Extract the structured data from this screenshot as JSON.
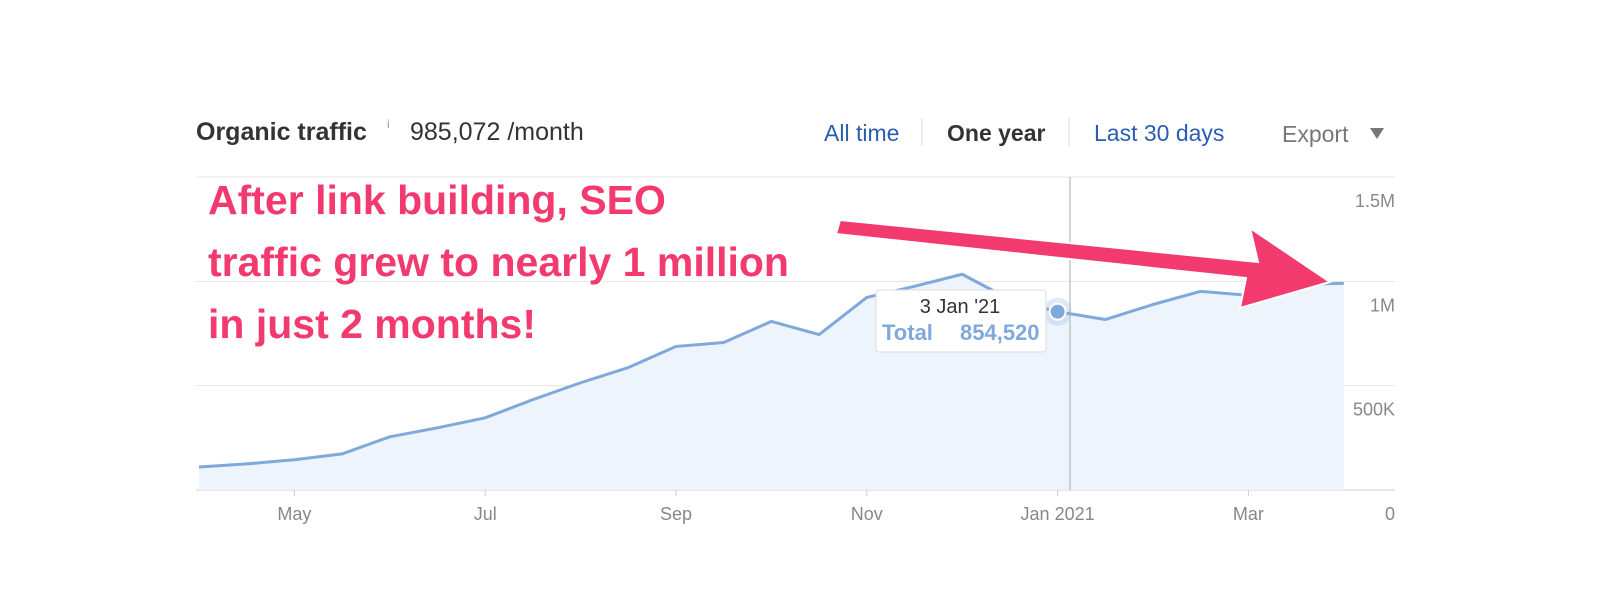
{
  "chart_data": {
    "type": "line",
    "header": {
      "title": "Organic traffic",
      "info": "i",
      "value": "985,072 /month"
    },
    "tabs": [
      "All time",
      "One year",
      "Last 30 days"
    ],
    "export": "Export",
    "annotation": [
      "After link building, SEO",
      "traffic grew to nearly 1 million",
      "in just 2 months!"
    ],
    "categories": [
      null,
      null,
      "May",
      null,
      null,
      null,
      "Jul",
      null,
      null,
      null,
      "Sep",
      null,
      null,
      null,
      "Nov",
      null,
      null,
      null,
      "Jan 2021",
      null,
      null,
      null,
      "Mar",
      null,
      null
    ],
    "series": [
      {
        "color": "#7fa9db",
        "values": [
          110000,
          125000,
          145000,
          173000,
          255000,
          298000,
          346000,
          433000,
          514000,
          587000,
          688000,
          707000,
          808000,
          745000,
          923000,
          976000,
          1034000,
          913000,
          854520,
          817000,
          889000,
          952000,
          933000,
          986000,
          990000
        ]
      }
    ],
    "tooltip": {
      "date": "3 Jan '21",
      "label": "Total",
      "value": 854520,
      "value_label": "854,520"
    },
    "ylim": [
      0,
      1500000
    ],
    "yticks": [
      0,
      {
        "value": 500000,
        "label": "500K"
      },
      {
        "value": 1000000,
        "label": "1M"
      },
      {
        "value": 1500000,
        "label": "1.5M"
      }
    ],
    "grid": true
  }
}
